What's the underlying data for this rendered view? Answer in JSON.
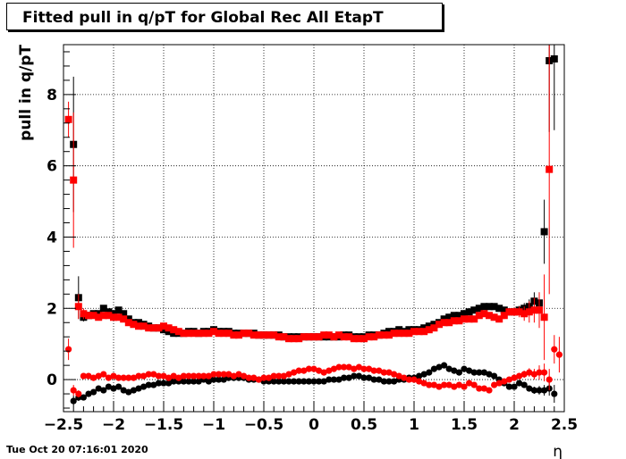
{
  "title": "Fitted pull in q/pT for Global Rec All EtapT",
  "timestamp": "Tue Oct 20 07:16:01 2020",
  "chart_data": {
    "type": "scatter",
    "xlabel": "η",
    "ylabel": "pull in q/pT",
    "xlim": [
      -2.5,
      2.5
    ],
    "ylim": [
      -0.9,
      9.4
    ],
    "grid": true,
    "x_ticks": [
      "−2.5",
      "−2",
      "−1.5",
      "−1",
      "−0.5",
      "0",
      "0.5",
      "1",
      "1.5",
      "2",
      "2.5"
    ],
    "y_ticks": [
      "0",
      "2",
      "4",
      "6",
      "8"
    ],
    "colors": {
      "black": "#000000",
      "red": "#ff0000"
    },
    "series": [
      {
        "color": "black",
        "marker": "square",
        "x": [
          -2.4,
          -2.35,
          -2.3,
          -2.25,
          -2.2,
          -2.15,
          -2.1,
          -2.05,
          -2.0,
          -1.95,
          -1.9,
          -1.85,
          -1.8,
          -1.75,
          -1.7,
          -1.65,
          -1.6,
          -1.55,
          -1.5,
          -1.45,
          -1.4,
          -1.35,
          -1.3,
          -1.25,
          -1.2,
          -1.15,
          -1.1,
          -1.05,
          -1.0,
          -0.95,
          -0.9,
          -0.85,
          -0.8,
          -0.75,
          -0.7,
          -0.65,
          -0.6,
          -0.55,
          -0.5,
          -0.45,
          -0.4,
          -0.35,
          -0.3,
          -0.25,
          -0.2,
          -0.15,
          -0.1,
          -0.05,
          0.0,
          0.05,
          0.1,
          0.15,
          0.2,
          0.25,
          0.3,
          0.35,
          0.4,
          0.45,
          0.5,
          0.55,
          0.6,
          0.65,
          0.7,
          0.75,
          0.8,
          0.85,
          0.9,
          0.95,
          1.0,
          1.05,
          1.1,
          1.15,
          1.2,
          1.25,
          1.3,
          1.35,
          1.4,
          1.45,
          1.5,
          1.55,
          1.6,
          1.65,
          1.7,
          1.75,
          1.8,
          1.85,
          1.9,
          1.95,
          2.0,
          2.05,
          2.1,
          2.15,
          2.2,
          2.25,
          2.3,
          2.35,
          2.4
        ],
        "y": [
          6.6,
          2.3,
          1.75,
          1.8,
          1.85,
          1.85,
          2.0,
          1.9,
          1.85,
          1.95,
          1.85,
          1.7,
          1.6,
          1.6,
          1.55,
          1.5,
          1.45,
          1.45,
          1.4,
          1.35,
          1.3,
          1.3,
          1.3,
          1.35,
          1.35,
          1.3,
          1.35,
          1.35,
          1.4,
          1.35,
          1.35,
          1.35,
          1.3,
          1.3,
          1.3,
          1.3,
          1.3,
          1.25,
          1.25,
          1.25,
          1.25,
          1.25,
          1.2,
          1.2,
          1.2,
          1.2,
          1.2,
          1.2,
          1.2,
          1.2,
          1.2,
          1.2,
          1.2,
          1.2,
          1.25,
          1.25,
          1.2,
          1.2,
          1.2,
          1.25,
          1.25,
          1.25,
          1.3,
          1.35,
          1.35,
          1.4,
          1.35,
          1.4,
          1.4,
          1.4,
          1.45,
          1.5,
          1.55,
          1.6,
          1.7,
          1.75,
          1.8,
          1.8,
          1.85,
          1.9,
          1.95,
          2.0,
          2.05,
          2.05,
          2.05,
          2.0,
          1.95,
          1.9,
          1.9,
          1.95,
          2.0,
          2.05,
          2.2,
          2.15,
          4.15,
          8.95,
          9.0
        ],
        "err": [
          1.9,
          0.6,
          0.12,
          0.1,
          0.08,
          0.08,
          0.08,
          0.06,
          0.06,
          0.06,
          0.06,
          0.05,
          0.05,
          0.05,
          0.05,
          0.05,
          0.05,
          0.05,
          0.05,
          0.05,
          0.05,
          0.05,
          0.05,
          0.05,
          0.05,
          0.05,
          0.05,
          0.05,
          0.05,
          0.05,
          0.05,
          0.05,
          0.05,
          0.05,
          0.05,
          0.05,
          0.05,
          0.05,
          0.05,
          0.05,
          0.05,
          0.05,
          0.05,
          0.05,
          0.05,
          0.05,
          0.05,
          0.05,
          0.05,
          0.05,
          0.05,
          0.05,
          0.05,
          0.05,
          0.05,
          0.05,
          0.05,
          0.05,
          0.05,
          0.05,
          0.05,
          0.05,
          0.05,
          0.05,
          0.05,
          0.05,
          0.05,
          0.05,
          0.05,
          0.05,
          0.05,
          0.05,
          0.05,
          0.05,
          0.05,
          0.05,
          0.05,
          0.05,
          0.05,
          0.06,
          0.06,
          0.06,
          0.06,
          0.06,
          0.07,
          0.08,
          0.08,
          0.1,
          0.1,
          0.12,
          0.15,
          0.2,
          0.25,
          0.3,
          0.9,
          2.0,
          2.0
        ]
      },
      {
        "color": "red",
        "marker": "square",
        "x": [
          -2.45,
          -2.4,
          -2.35,
          -2.3,
          -2.25,
          -2.2,
          -2.15,
          -2.1,
          -2.05,
          -2.0,
          -1.95,
          -1.9,
          -1.85,
          -1.8,
          -1.75,
          -1.7,
          -1.65,
          -1.6,
          -1.55,
          -1.5,
          -1.45,
          -1.4,
          -1.35,
          -1.3,
          -1.25,
          -1.2,
          -1.15,
          -1.1,
          -1.05,
          -1.0,
          -0.95,
          -0.9,
          -0.85,
          -0.8,
          -0.75,
          -0.7,
          -0.65,
          -0.6,
          -0.55,
          -0.5,
          -0.45,
          -0.4,
          -0.35,
          -0.3,
          -0.25,
          -0.2,
          -0.15,
          -0.1,
          -0.05,
          0.0,
          0.05,
          0.1,
          0.15,
          0.2,
          0.25,
          0.3,
          0.35,
          0.4,
          0.45,
          0.5,
          0.55,
          0.6,
          0.65,
          0.7,
          0.75,
          0.8,
          0.85,
          0.9,
          0.95,
          1.0,
          1.05,
          1.1,
          1.15,
          1.2,
          1.25,
          1.3,
          1.35,
          1.4,
          1.45,
          1.5,
          1.55,
          1.6,
          1.65,
          1.7,
          1.75,
          1.8,
          1.85,
          1.9,
          1.95,
          2.0,
          2.05,
          2.1,
          2.15,
          2.2,
          2.25,
          2.3,
          2.35
        ],
        "y": [
          7.3,
          5.6,
          2.05,
          1.85,
          1.8,
          1.8,
          1.75,
          1.8,
          1.8,
          1.75,
          1.75,
          1.7,
          1.6,
          1.55,
          1.5,
          1.5,
          1.45,
          1.45,
          1.45,
          1.5,
          1.45,
          1.4,
          1.35,
          1.3,
          1.3,
          1.3,
          1.3,
          1.3,
          1.3,
          1.35,
          1.3,
          1.3,
          1.3,
          1.25,
          1.25,
          1.3,
          1.3,
          1.25,
          1.25,
          1.25,
          1.25,
          1.25,
          1.2,
          1.2,
          1.15,
          1.15,
          1.15,
          1.2,
          1.2,
          1.2,
          1.2,
          1.25,
          1.25,
          1.2,
          1.25,
          1.2,
          1.2,
          1.15,
          1.15,
          1.15,
          1.2,
          1.2,
          1.25,
          1.25,
          1.25,
          1.3,
          1.3,
          1.3,
          1.3,
          1.35,
          1.35,
          1.35,
          1.4,
          1.45,
          1.55,
          1.6,
          1.6,
          1.65,
          1.65,
          1.7,
          1.7,
          1.7,
          1.8,
          1.85,
          1.8,
          1.75,
          1.7,
          1.8,
          1.9,
          1.9,
          1.9,
          1.85,
          1.9,
          1.95,
          1.95,
          1.75,
          5.9
        ],
        "err": [
          0.5,
          1.9,
          0.35,
          0.15,
          0.1,
          0.08,
          0.08,
          0.08,
          0.07,
          0.07,
          0.06,
          0.06,
          0.06,
          0.06,
          0.05,
          0.05,
          0.05,
          0.05,
          0.05,
          0.05,
          0.05,
          0.05,
          0.05,
          0.05,
          0.05,
          0.05,
          0.05,
          0.05,
          0.05,
          0.05,
          0.05,
          0.05,
          0.05,
          0.05,
          0.05,
          0.05,
          0.05,
          0.05,
          0.05,
          0.05,
          0.05,
          0.05,
          0.05,
          0.05,
          0.05,
          0.05,
          0.05,
          0.05,
          0.05,
          0.05,
          0.05,
          0.05,
          0.05,
          0.05,
          0.05,
          0.05,
          0.05,
          0.05,
          0.05,
          0.05,
          0.05,
          0.05,
          0.05,
          0.05,
          0.05,
          0.05,
          0.05,
          0.05,
          0.05,
          0.05,
          0.05,
          0.05,
          0.05,
          0.05,
          0.05,
          0.05,
          0.05,
          0.05,
          0.05,
          0.05,
          0.06,
          0.06,
          0.06,
          0.06,
          0.07,
          0.08,
          0.08,
          0.1,
          0.1,
          0.12,
          0.15,
          0.2,
          0.3,
          0.35,
          0.5,
          1.2,
          3.5
        ]
      },
      {
        "color": "black",
        "marker": "circle",
        "x": [
          -2.4,
          -2.35,
          -2.3,
          -2.25,
          -2.2,
          -2.15,
          -2.1,
          -2.05,
          -2.0,
          -1.95,
          -1.9,
          -1.85,
          -1.8,
          -1.75,
          -1.7,
          -1.65,
          -1.6,
          -1.55,
          -1.5,
          -1.45,
          -1.4,
          -1.35,
          -1.3,
          -1.25,
          -1.2,
          -1.15,
          -1.1,
          -1.05,
          -1.0,
          -0.95,
          -0.9,
          -0.85,
          -0.8,
          -0.75,
          -0.7,
          -0.65,
          -0.6,
          -0.55,
          -0.5,
          -0.45,
          -0.4,
          -0.35,
          -0.3,
          -0.25,
          -0.2,
          -0.15,
          -0.1,
          -0.05,
          0.0,
          0.05,
          0.1,
          0.15,
          0.2,
          0.25,
          0.3,
          0.35,
          0.4,
          0.45,
          0.5,
          0.55,
          0.6,
          0.65,
          0.7,
          0.75,
          0.8,
          0.85,
          0.9,
          0.95,
          1.0,
          1.05,
          1.1,
          1.15,
          1.2,
          1.25,
          1.3,
          1.35,
          1.4,
          1.45,
          1.5,
          1.55,
          1.6,
          1.65,
          1.7,
          1.75,
          1.8,
          1.85,
          1.9,
          1.95,
          2.0,
          2.05,
          2.1,
          2.15,
          2.2,
          2.25,
          2.3,
          2.35,
          2.4
        ],
        "y": [
          -0.6,
          -0.5,
          -0.5,
          -0.4,
          -0.35,
          -0.25,
          -0.3,
          -0.2,
          -0.25,
          -0.2,
          -0.3,
          -0.35,
          -0.3,
          -0.25,
          -0.2,
          -0.15,
          -0.15,
          -0.1,
          -0.1,
          -0.1,
          -0.05,
          -0.05,
          -0.05,
          -0.05,
          -0.05,
          -0.05,
          0.0,
          -0.05,
          0.0,
          0.0,
          0.0,
          0.05,
          0.05,
          0.05,
          0.05,
          0.0,
          0.0,
          0.0,
          -0.05,
          -0.05,
          -0.05,
          -0.05,
          -0.05,
          -0.05,
          -0.05,
          -0.05,
          -0.05,
          -0.05,
          -0.05,
          -0.05,
          -0.05,
          0.0,
          0.0,
          0.0,
          0.05,
          0.05,
          0.1,
          0.1,
          0.05,
          0.05,
          0.0,
          0.0,
          -0.05,
          -0.05,
          -0.05,
          0.0,
          0.0,
          0.05,
          0.05,
          0.1,
          0.15,
          0.2,
          0.3,
          0.35,
          0.4,
          0.3,
          0.25,
          0.2,
          0.3,
          0.25,
          0.2,
          0.2,
          0.2,
          0.15,
          0.1,
          0.0,
          -0.1,
          -0.2,
          -0.2,
          -0.1,
          -0.15,
          -0.25,
          -0.3,
          -0.3,
          -0.3,
          -0.25,
          -0.4
        ],
        "err": [
          0.15,
          0.1,
          0.08,
          0.06,
          0.05,
          0.05,
          0.05,
          0.05,
          0.05,
          0.05,
          0.04,
          0.04,
          0.04,
          0.04,
          0.04,
          0.04,
          0.04,
          0.04,
          0.04,
          0.04,
          0.04,
          0.04,
          0.04,
          0.04,
          0.04,
          0.04,
          0.04,
          0.04,
          0.04,
          0.04,
          0.04,
          0.04,
          0.04,
          0.04,
          0.04,
          0.04,
          0.04,
          0.04,
          0.04,
          0.04,
          0.04,
          0.04,
          0.04,
          0.04,
          0.04,
          0.04,
          0.04,
          0.04,
          0.04,
          0.04,
          0.04,
          0.04,
          0.04,
          0.04,
          0.04,
          0.04,
          0.04,
          0.04,
          0.04,
          0.04,
          0.04,
          0.04,
          0.04,
          0.04,
          0.04,
          0.04,
          0.04,
          0.04,
          0.04,
          0.04,
          0.04,
          0.04,
          0.04,
          0.04,
          0.04,
          0.04,
          0.04,
          0.04,
          0.04,
          0.04,
          0.04,
          0.04,
          0.04,
          0.04,
          0.05,
          0.05,
          0.05,
          0.06,
          0.06,
          0.06,
          0.07,
          0.08,
          0.1,
          0.12,
          0.15,
          0.2,
          0.25
        ]
      },
      {
        "color": "red",
        "marker": "circle",
        "x": [
          -2.45,
          -2.4,
          -2.35,
          -2.3,
          -2.25,
          -2.2,
          -2.15,
          -2.1,
          -2.05,
          -2.0,
          -1.95,
          -1.9,
          -1.85,
          -1.8,
          -1.75,
          -1.7,
          -1.65,
          -1.6,
          -1.55,
          -1.5,
          -1.45,
          -1.4,
          -1.35,
          -1.3,
          -1.25,
          -1.2,
          -1.15,
          -1.1,
          -1.05,
          -1.0,
          -0.95,
          -0.9,
          -0.85,
          -0.8,
          -0.75,
          -0.7,
          -0.65,
          -0.6,
          -0.55,
          -0.5,
          -0.45,
          -0.4,
          -0.35,
          -0.3,
          -0.25,
          -0.2,
          -0.15,
          -0.1,
          -0.05,
          0.0,
          0.05,
          0.1,
          0.15,
          0.2,
          0.25,
          0.3,
          0.35,
          0.4,
          0.45,
          0.5,
          0.55,
          0.6,
          0.65,
          0.7,
          0.75,
          0.8,
          0.85,
          0.9,
          0.95,
          1.0,
          1.05,
          1.1,
          1.15,
          1.2,
          1.25,
          1.3,
          1.35,
          1.4,
          1.45,
          1.5,
          1.55,
          1.6,
          1.65,
          1.7,
          1.75,
          1.8,
          1.85,
          1.9,
          1.95,
          2.0,
          2.05,
          2.1,
          2.15,
          2.2,
          2.25,
          2.3,
          2.35,
          2.4,
          2.45
        ],
        "y": [
          0.85,
          -0.3,
          -0.4,
          0.1,
          0.1,
          0.05,
          0.1,
          0.15,
          0.05,
          0.1,
          0.05,
          0.05,
          0.05,
          0.05,
          0.1,
          0.1,
          0.15,
          0.15,
          0.1,
          0.1,
          0.05,
          0.1,
          0.05,
          0.1,
          0.1,
          0.1,
          0.1,
          0.1,
          0.1,
          0.15,
          0.15,
          0.15,
          0.15,
          0.1,
          0.15,
          0.1,
          0.05,
          0.05,
          0.0,
          0.05,
          0.05,
          0.1,
          0.1,
          0.1,
          0.15,
          0.2,
          0.25,
          0.25,
          0.3,
          0.3,
          0.25,
          0.2,
          0.25,
          0.3,
          0.35,
          0.35,
          0.35,
          0.3,
          0.35,
          0.3,
          0.3,
          0.25,
          0.25,
          0.2,
          0.2,
          0.15,
          0.1,
          0.05,
          0.0,
          0.0,
          -0.05,
          -0.1,
          -0.15,
          -0.15,
          -0.2,
          -0.15,
          -0.15,
          -0.2,
          -0.15,
          -0.2,
          -0.1,
          -0.15,
          -0.25,
          -0.25,
          -0.3,
          -0.15,
          -0.1,
          -0.05,
          0.0,
          0.05,
          0.1,
          0.15,
          0.2,
          0.15,
          0.2,
          0.2,
          0.0,
          0.85,
          0.7
        ],
        "err": [
          0.3,
          0.15,
          0.1,
          0.08,
          0.06,
          0.05,
          0.05,
          0.05,
          0.05,
          0.05,
          0.04,
          0.04,
          0.04,
          0.04,
          0.04,
          0.04,
          0.04,
          0.04,
          0.04,
          0.04,
          0.04,
          0.04,
          0.04,
          0.04,
          0.04,
          0.04,
          0.04,
          0.04,
          0.04,
          0.04,
          0.04,
          0.04,
          0.04,
          0.04,
          0.04,
          0.04,
          0.04,
          0.04,
          0.04,
          0.04,
          0.04,
          0.04,
          0.04,
          0.04,
          0.04,
          0.04,
          0.04,
          0.04,
          0.04,
          0.04,
          0.04,
          0.04,
          0.04,
          0.04,
          0.04,
          0.04,
          0.04,
          0.04,
          0.04,
          0.04,
          0.04,
          0.04,
          0.04,
          0.04,
          0.04,
          0.04,
          0.04,
          0.04,
          0.04,
          0.04,
          0.04,
          0.04,
          0.04,
          0.04,
          0.04,
          0.04,
          0.04,
          0.04,
          0.04,
          0.04,
          0.04,
          0.04,
          0.04,
          0.04,
          0.05,
          0.05,
          0.05,
          0.06,
          0.06,
          0.07,
          0.08,
          0.1,
          0.12,
          0.15,
          0.2,
          0.25,
          0.3,
          0.4,
          0.5
        ]
      }
    ]
  }
}
